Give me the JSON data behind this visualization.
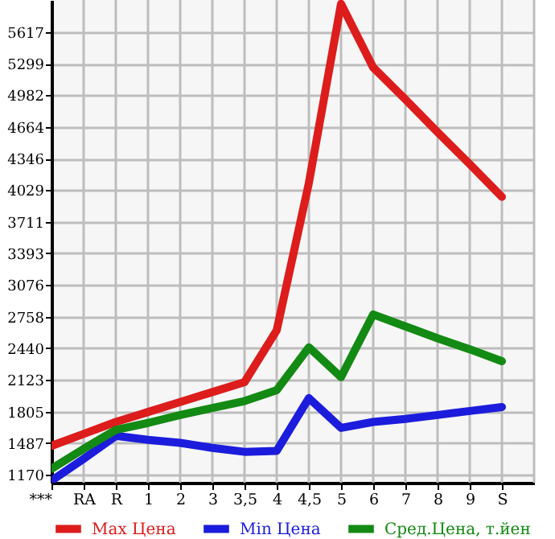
{
  "chart_data": {
    "type": "line",
    "categories": [
      "***",
      "RA",
      "R",
      "1",
      "2",
      "3",
      "3,5",
      "4",
      "4,5",
      "5",
      "6",
      "7",
      "8",
      "9",
      "S"
    ],
    "series": [
      {
        "name": "Max Цена",
        "color": "#dd1c1c",
        "values": [
          1460,
          1580,
          1700,
          1800,
          1900,
          2000,
          2100,
          2620,
          4100,
          5900,
          5260,
          4940,
          4610,
          4290,
          3960
        ]
      },
      {
        "name": "Min Цена",
        "color": "#1c1cdd",
        "values": [
          1110,
          1330,
          1560,
          1520,
          1490,
          1440,
          1400,
          1410,
          1940,
          1640,
          1700,
          1730,
          1770,
          1810,
          1850
        ]
      },
      {
        "name": "Сред.Цена, т.йен",
        "color": "#138a13",
        "values": [
          1230,
          1430,
          1620,
          1690,
          1770,
          1840,
          1910,
          2020,
          2450,
          2150,
          2780,
          2660,
          2540,
          2430,
          2310
        ]
      }
    ],
    "ylim": [
      1090,
      5938
    ],
    "yticks": [
      1170,
      1487,
      1805,
      2123,
      2440,
      2758,
      3076,
      3393,
      3711,
      4029,
      4346,
      4664,
      4982,
      5299,
      5617
    ],
    "grid": true,
    "legend": "bottom",
    "line_style": "solid",
    "marker": "none"
  }
}
